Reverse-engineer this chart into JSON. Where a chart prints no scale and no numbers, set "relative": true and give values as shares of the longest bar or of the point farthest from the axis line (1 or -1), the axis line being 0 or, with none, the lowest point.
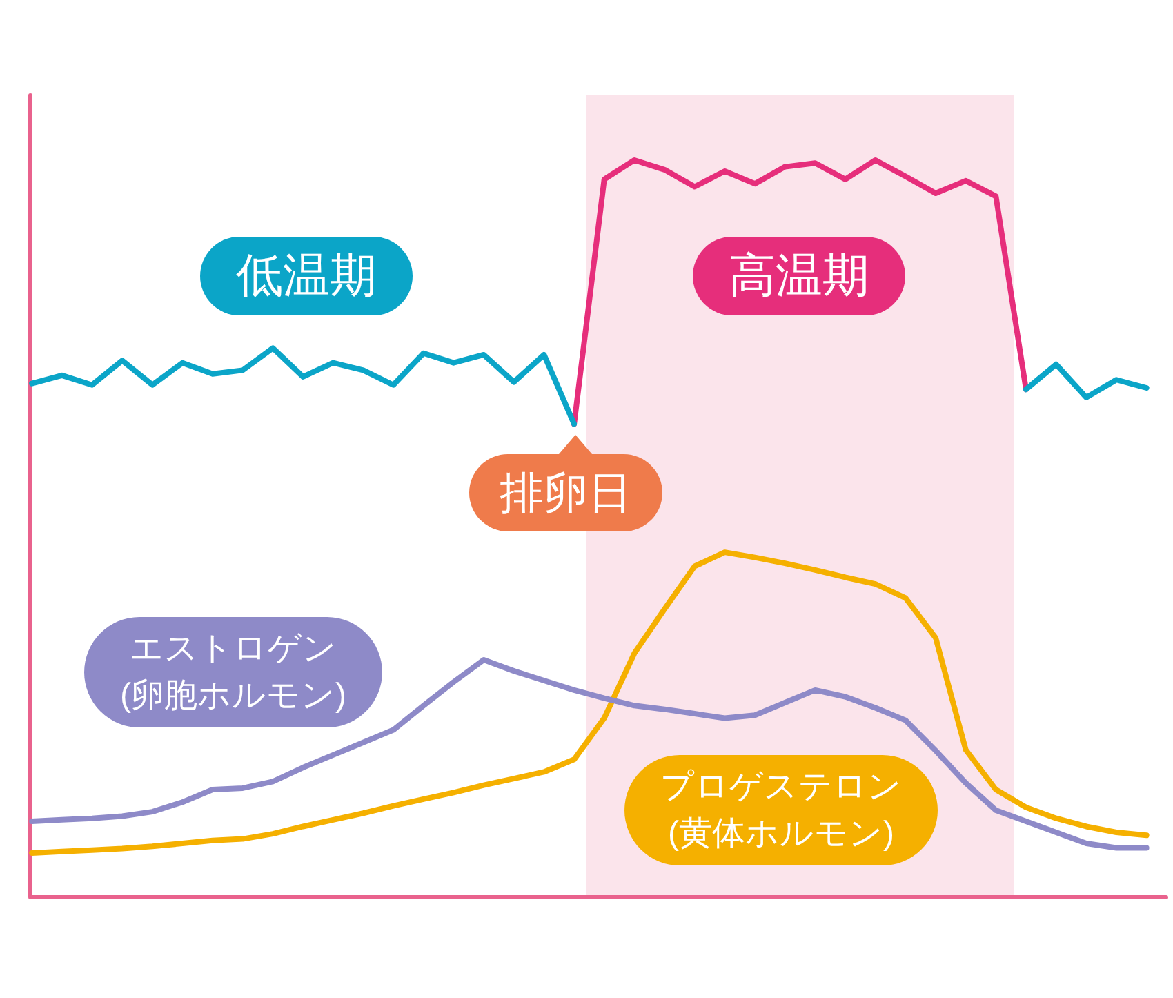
{
  "chart_data": {
    "type": "line",
    "relative": true,
    "categories": [
      null,
      null,
      null,
      null,
      null,
      null,
      null,
      null,
      null,
      null,
      null,
      null,
      null,
      null,
      null,
      null,
      null,
      null,
      null,
      null,
      null,
      null,
      null,
      null,
      null,
      null,
      null,
      null,
      null,
      null,
      null,
      null,
      null,
      null,
      null,
      null,
      null,
      null
    ],
    "series": [
      {
        "name": "低温期",
        "color": "#0ba5c8",
        "values": [
          0.697,
          0.708,
          0.695,
          0.728,
          0.695,
          0.725,
          0.71,
          0.715,
          0.745,
          0.706,
          0.725,
          0.715,
          0.695,
          0.738,
          0.725,
          0.736,
          0.699,
          0.736,
          0.642,
          null,
          null,
          null,
          null,
          null,
          null,
          null,
          null,
          null,
          null,
          null,
          null,
          null,
          null,
          0.689,
          0.723,
          0.678,
          0.702,
          0.691
        ]
      },
      {
        "name": "高温期",
        "color": "#e62e7b",
        "values": [
          null,
          null,
          null,
          null,
          null,
          null,
          null,
          null,
          null,
          null,
          null,
          null,
          null,
          null,
          null,
          null,
          null,
          null,
          0.642,
          0.974,
          1.0,
          0.987,
          0.964,
          0.985,
          0.968,
          0.991,
          0.996,
          0.974,
          1.0,
          0.978,
          0.955,
          0.972,
          0.951,
          0.689,
          null,
          null,
          null,
          null
        ]
      },
      {
        "name": "エストロゲン\n(卵胞ホルモン)",
        "color": "#8e8ac8",
        "values": [
          0.103,
          0.105,
          0.107,
          0.11,
          0.116,
          0.129,
          0.146,
          0.148,
          0.157,
          0.176,
          0.193,
          0.21,
          0.227,
          0.26,
          0.292,
          0.322,
          0.307,
          0.294,
          0.281,
          0.27,
          0.26,
          0.255,
          0.249,
          0.243,
          0.247,
          0.264,
          0.281,
          0.272,
          0.257,
          0.24,
          0.199,
          0.155,
          0.118,
          0.103,
          0.088,
          0.073,
          0.067,
          0.067
        ]
      },
      {
        "name": "プロゲステロン\n(黄体ホルモン)",
        "color": "#f5b000",
        "values": [
          0.06,
          0.062,
          0.064,
          0.066,
          0.069,
          0.073,
          0.077,
          0.079,
          0.086,
          0.096,
          0.105,
          0.114,
          0.124,
          0.133,
          0.142,
          0.152,
          0.161,
          0.17,
          0.187,
          0.243,
          0.331,
          0.391,
          0.449,
          0.468,
          0.461,
          0.453,
          0.444,
          0.434,
          0.425,
          0.406,
          0.352,
          0.2,
          0.146,
          0.122,
          0.107,
          0.096,
          0.088,
          0.084
        ]
      }
    ],
    "annotations": [
      "排卵日"
    ]
  }
}
